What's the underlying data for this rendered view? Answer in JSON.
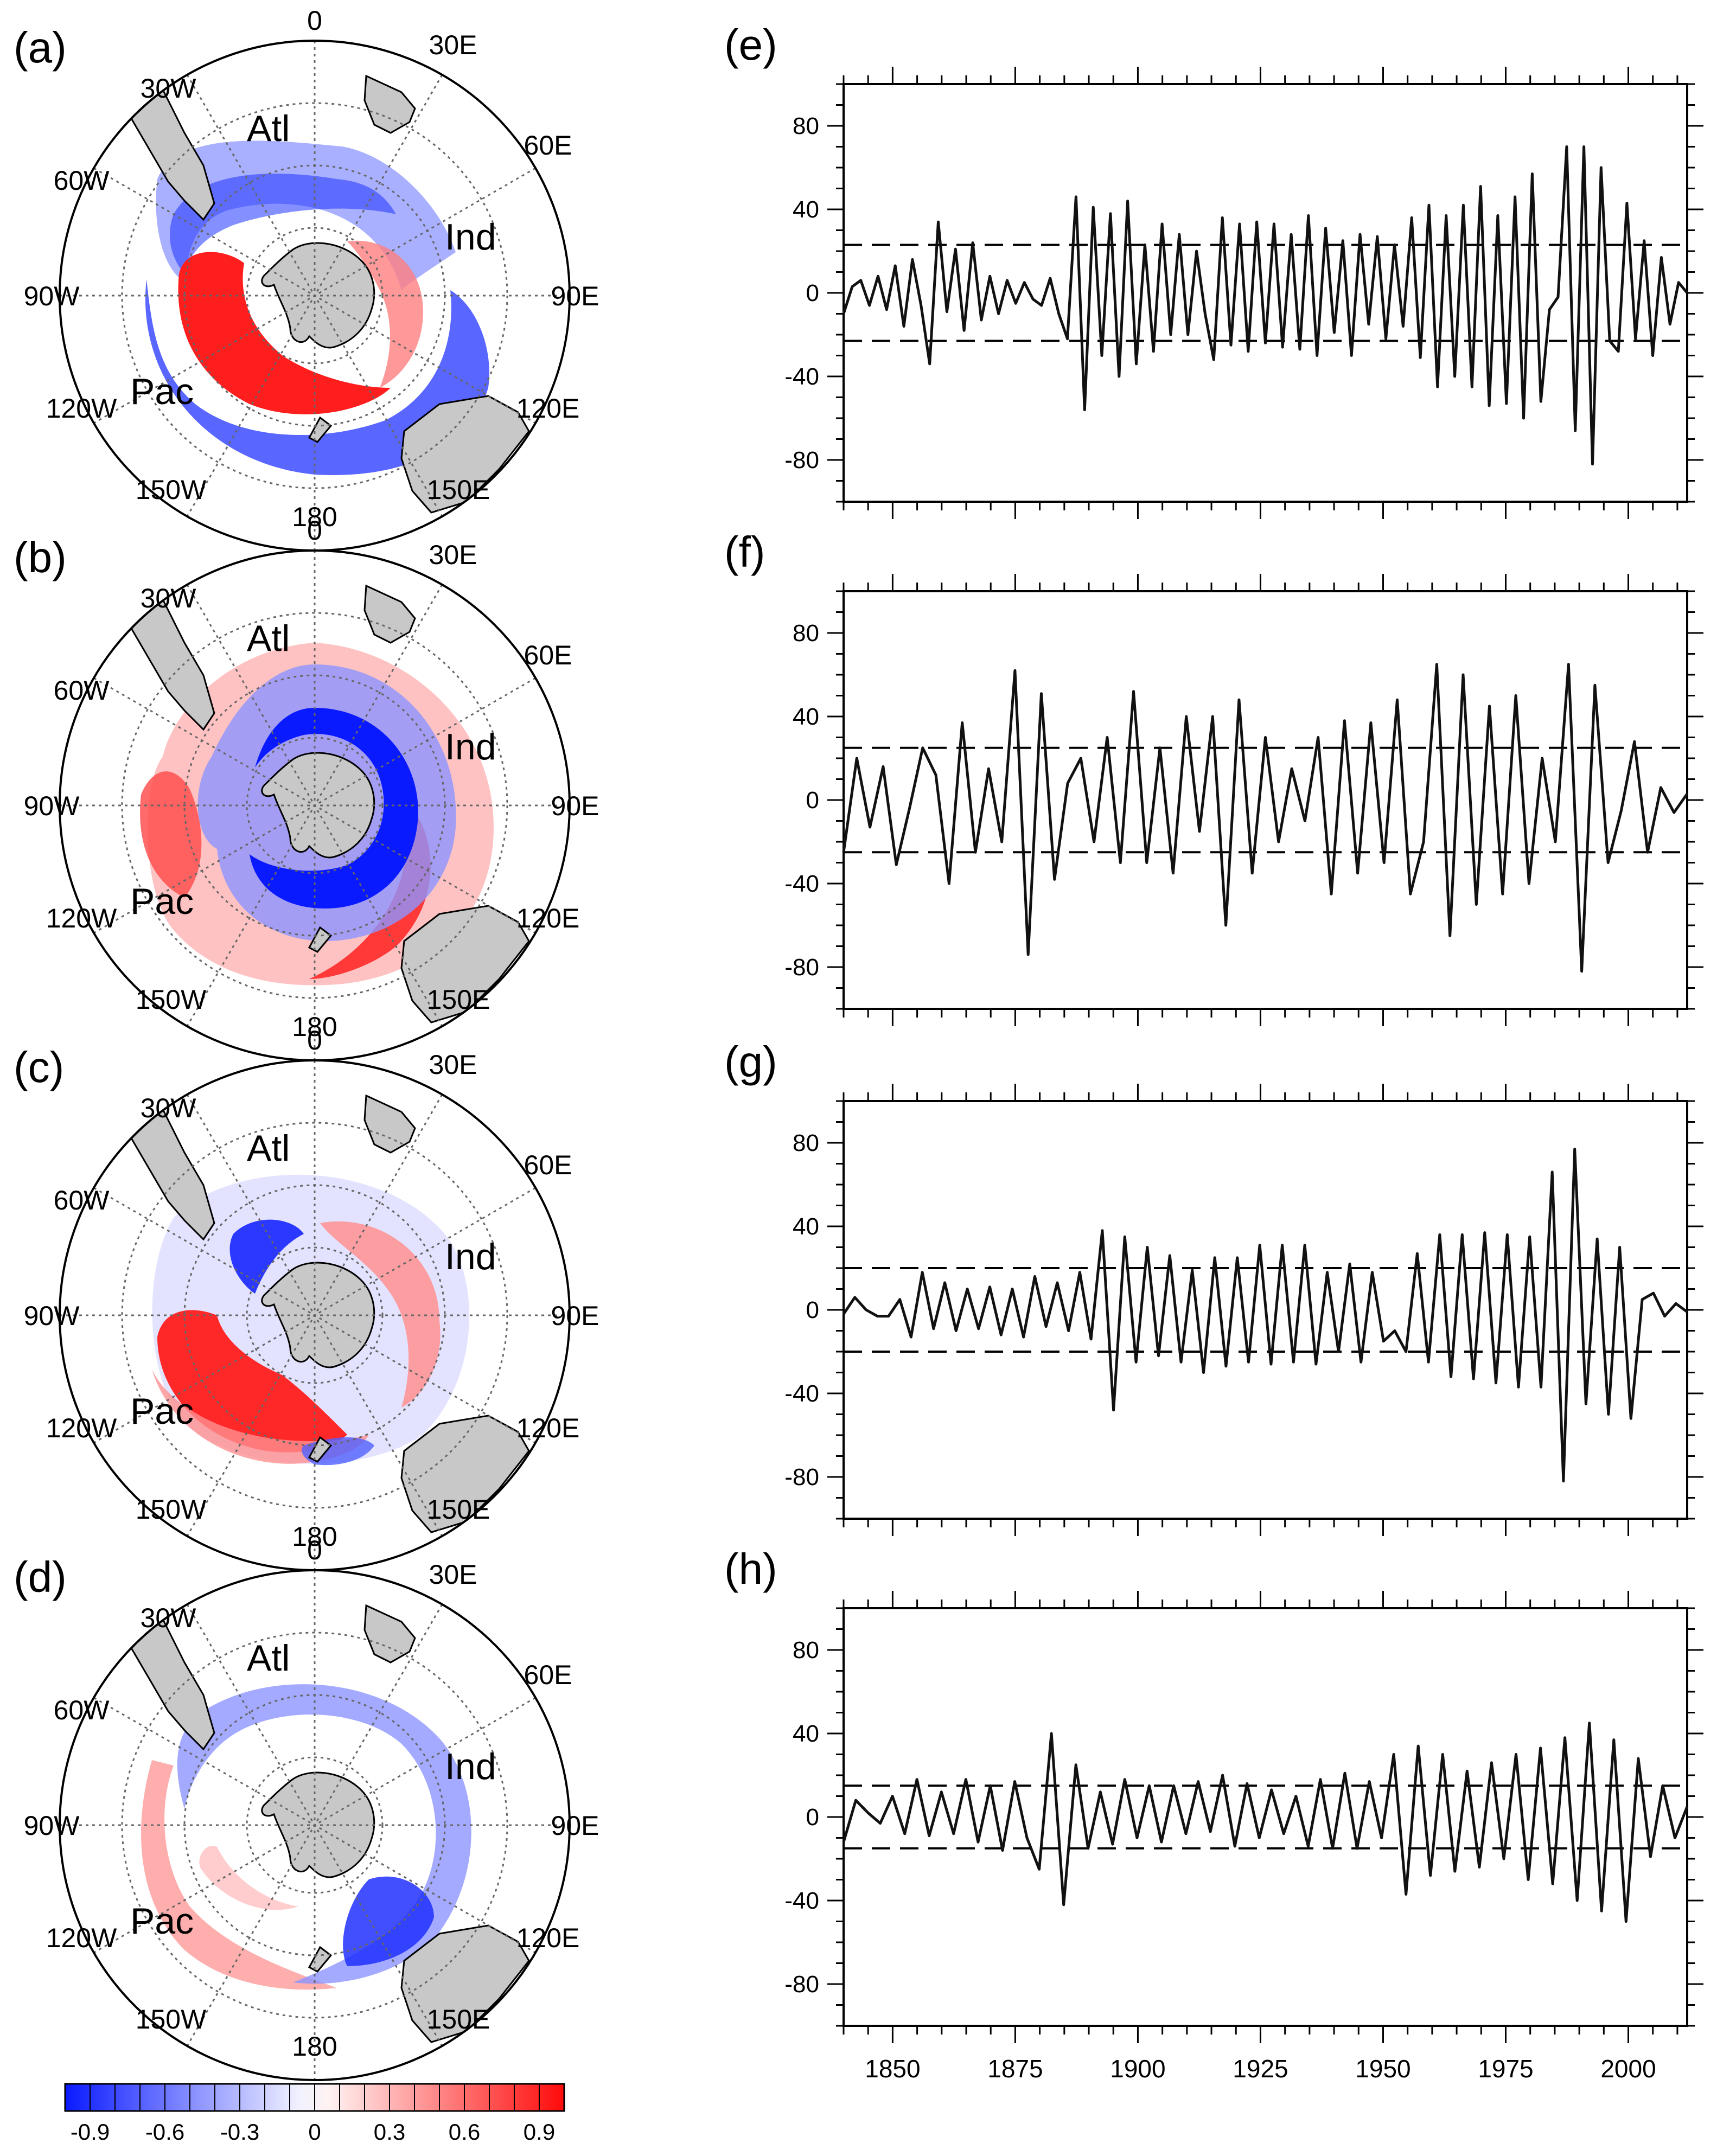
{
  "colors": {
    "neg_strong": "#0a1aff",
    "pos_strong": "#ff0a0a",
    "land": "#c8c8c8",
    "series": "#111111"
  },
  "colorbar": {
    "labels": [
      "-0.9",
      "-0.6",
      "-0.3",
      "0",
      "0.3",
      "0.6",
      "0.9"
    ],
    "levels": [
      -0.9,
      -0.8,
      -0.7,
      -0.6,
      -0.5,
      -0.4,
      -0.3,
      -0.2,
      -0.1,
      0,
      0.1,
      0.2,
      0.3,
      0.4,
      0.5,
      0.6,
      0.7,
      0.8,
      0.9
    ]
  },
  "maps": {
    "lon_labels": [
      "0",
      "30E",
      "60E",
      "90E",
      "120E",
      "150E",
      "180",
      "150W",
      "120W",
      "90W",
      "60W",
      "30W"
    ],
    "basins": {
      "atl": "Atl",
      "ind": "Ind",
      "pac": "Pac"
    },
    "panels": [
      {
        "label": "(a)"
      },
      {
        "label": "(b)"
      },
      {
        "label": "(c)"
      },
      {
        "label": "(d)"
      }
    ]
  },
  "chart_data": {
    "type": "line",
    "x_range": [
      1840,
      2012
    ],
    "ylim": [
      -100,
      100
    ],
    "yticks": [
      "80",
      "40",
      "0",
      "-40",
      "-80"
    ],
    "xticks": [
      "1850",
      "1875",
      "1900",
      "1925",
      "1950",
      "1975",
      "2000"
    ],
    "series": [
      {
        "label": "(e)",
        "threshold": 23,
        "values": [
          -10,
          3,
          6,
          -6,
          8,
          -8,
          13,
          -16,
          16,
          -6,
          -34,
          34,
          -9,
          21,
          -18,
          24,
          -13,
          8,
          -10,
          6,
          -5,
          5,
          -3,
          -6,
          7,
          -10,
          -22,
          46,
          -56,
          41,
          -30,
          38,
          -40,
          44,
          -34,
          23,
          -28,
          33,
          -20,
          28,
          -20,
          20,
          -10,
          -32,
          36,
          -25,
          33,
          -28,
          34,
          -24,
          33,
          -26,
          28,
          -27,
          37,
          -30,
          31,
          -19,
          25,
          -30,
          28,
          -15,
          27,
          -22,
          23,
          -16,
          36,
          -31,
          42,
          -45,
          37,
          -40,
          42,
          -45,
          51,
          -54,
          37,
          -53,
          46,
          -60,
          57,
          -52,
          -8,
          -2,
          70,
          -66,
          70,
          -82,
          60,
          -23,
          -28,
          43,
          -22,
          25,
          -30,
          17,
          -15,
          5,
          0
        ]
      },
      {
        "label": "(f)",
        "threshold": 25,
        "values": [
          -25,
          20,
          -13,
          16,
          -31,
          -4,
          25,
          12,
          -40,
          37,
          -25,
          15,
          -20,
          62,
          -74,
          51,
          -38,
          8,
          20,
          -20,
          30,
          -30,
          52,
          -30,
          25,
          -35,
          40,
          -15,
          40,
          -60,
          48,
          -35,
          30,
          -20,
          15,
          -10,
          30,
          -45,
          38,
          -35,
          37,
          -30,
          48,
          -45,
          -20,
          65,
          -65,
          60,
          -50,
          45,
          -45,
          50,
          -40,
          20,
          -20,
          65,
          -82,
          55,
          -30,
          -5,
          28,
          -25,
          6,
          -6,
          3
        ]
      },
      {
        "label": "(g)",
        "threshold": 20,
        "values": [
          -2,
          6,
          0,
          -3,
          -3,
          5,
          -13,
          18,
          -9,
          13,
          -10,
          10,
          -9,
          11,
          -12,
          10,
          -13,
          16,
          -8,
          13,
          -10,
          18,
          -14,
          38,
          -48,
          35,
          -25,
          30,
          -22,
          26,
          -25,
          19,
          -30,
          25,
          -27,
          25,
          -25,
          31,
          -26,
          31,
          -25,
          31,
          -26,
          18,
          -20,
          22,
          -25,
          18,
          -15,
          -10,
          -20,
          27,
          -25,
          36,
          -32,
          36,
          -33,
          37,
          -35,
          36,
          -37,
          35,
          -37,
          66,
          -82,
          77,
          -45,
          34,
          -50,
          30,
          -52,
          5,
          8,
          -3,
          3,
          -1
        ]
      },
      {
        "label": "(h)",
        "threshold": 15,
        "values": [
          -12,
          8,
          2,
          -3,
          10,
          -8,
          18,
          -9,
          12,
          -8,
          18,
          -12,
          15,
          -16,
          17,
          -10,
          -25,
          40,
          -42,
          25,
          -15,
          12,
          -13,
          18,
          -10,
          15,
          -12,
          15,
          -8,
          17,
          -7,
          20,
          -14,
          16,
          -10,
          13,
          -8,
          10,
          -14,
          18,
          -15,
          21,
          -15,
          17,
          -10,
          30,
          -37,
          34,
          -28,
          30,
          -26,
          22,
          -24,
          26,
          -20,
          30,
          -30,
          33,
          -32,
          38,
          -40,
          45,
          -45,
          37,
          -50,
          28,
          -19,
          15,
          -10,
          5
        ]
      }
    ]
  }
}
